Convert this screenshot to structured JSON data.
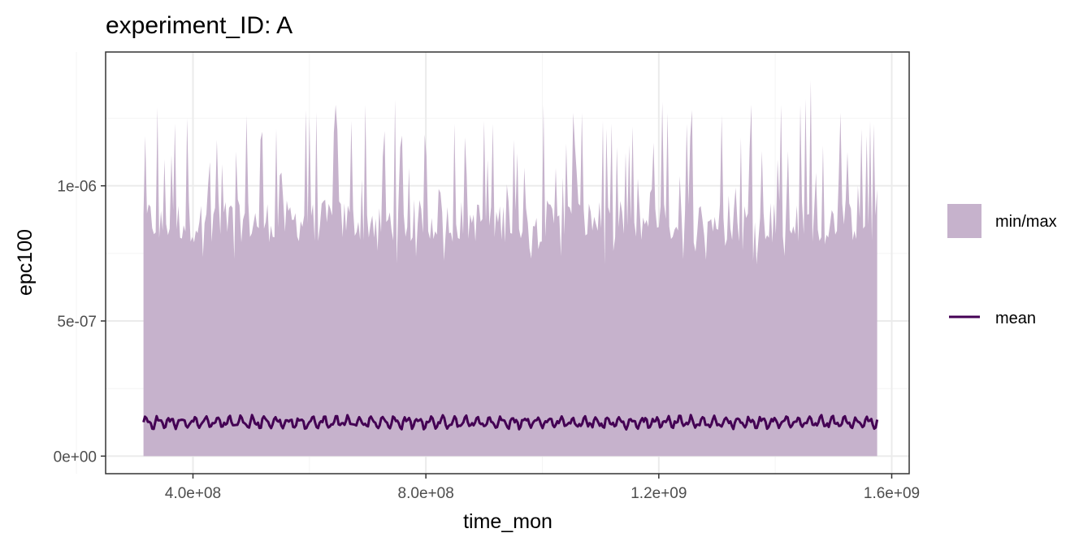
{
  "chart_data": {
    "type": "area",
    "title": "experiment_ID: A",
    "xlabel": "time_mon",
    "ylabel": "epc100",
    "xlim": [
      250000000,
      1630000000
    ],
    "ylim": [
      -6.5e-08,
      1.495e-06
    ],
    "x_ticks": [
      {
        "value": 400000000,
        "label": "4.0e+08"
      },
      {
        "value": 800000000,
        "label": "8.0e+08"
      },
      {
        "value": 1200000000,
        "label": "1.2e+09"
      },
      {
        "value": 1600000000,
        "label": "1.6e+09"
      }
    ],
    "y_ticks": [
      {
        "value": 0,
        "label": "0e+00"
      },
      {
        "value": 5e-07,
        "label": "5e-07"
      },
      {
        "value": 1e-06,
        "label": "1e-06"
      }
    ],
    "x_range": [
      315000000,
      1575000000
    ],
    "legend": {
      "position": "right",
      "entries": [
        {
          "label": "min/max",
          "kind": "fill",
          "color": "#c6b2cc"
        },
        {
          "label": "mean",
          "kind": "line",
          "color": "#440154"
        }
      ]
    },
    "series": [
      {
        "name": "min/max",
        "kind": "ribbon",
        "min": 0.0,
        "max_peaks": [
          1.29e-06,
          1.25e-06,
          1.17e-06,
          1.26e-06,
          1.21e-06,
          1.28e-06,
          1.3e-06,
          1.32e-06,
          1.19e-06,
          1.23e-06,
          1.24e-06,
          1.17e-06,
          1.3e-06,
          1.27e-06,
          1.24e-06,
          1.22e-06,
          1.31e-06,
          1.28e-06,
          1.26e-06,
          1.3e-06,
          1.39e-06,
          1.27e-06,
          1.24e-06
        ],
        "max_troughs": [
          7.8e-07,
          7.4e-07,
          7.3e-07,
          7.5e-07,
          7.2e-07,
          7.4e-07,
          7.1e-07,
          7.2e-07,
          7.3e-07,
          7e-07,
          7.1e-07,
          7.4e-07,
          7.2e-07,
          7.5e-07,
          7.3e-07
        ]
      },
      {
        "name": "mean",
        "kind": "line",
        "approx_range": [
          9.5e-08,
          1.6e-07
        ],
        "approx_mean": 1.25e-07
      }
    ],
    "colors": {
      "ribbon": "#c6b2cc",
      "line": "#440154",
      "panel_border": "#333333"
    },
    "grid": true
  }
}
